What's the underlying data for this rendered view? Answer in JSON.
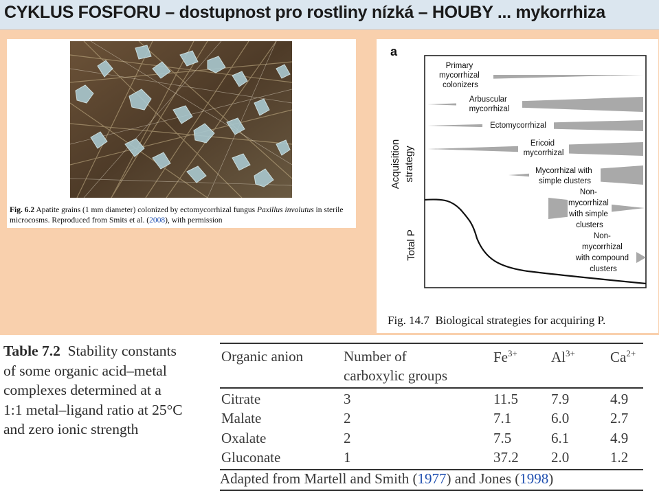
{
  "header": {
    "title": "CYKLUS FOSFORU – dostupnost pro rostliny nízká – HOUBY ... mykorrhiza"
  },
  "fig_6_2": {
    "label": "Fig. 6.2",
    "caption_before_species": "Apatite grains (1 mm diameter) colonized by ectomycorrhizal fungus",
    "species": "Paxillus involutus",
    "caption_after_species": "in sterile microcosms. Reproduced from Smits et al. (",
    "citation_year": "2008",
    "caption_end": "), with permission"
  },
  "fig_14_7": {
    "panel_letter": "a",
    "y_axis_top": "Acquisition strategy",
    "y_axis_top_line1": "Acquisition",
    "y_axis_top_line2": "strategy",
    "y_axis_bottom": "Total P",
    "strategies": [
      "Primary mycorrhizal colonizers",
      "Arbuscular mycorrhizal",
      "Ectomycorrhizal",
      "Ericoid mycorrhizal",
      "Mycorrhizal with simple clusters",
      "Non-mycorrhizal with simple clusters",
      "Non-mycorrhizal with compound clusters"
    ],
    "strategy_lines": [
      [
        "Primary",
        "mycorrhizal",
        "colonizers"
      ],
      [
        "Arbuscular",
        "mycorrhizal"
      ],
      [
        "Ectomycorrhizal"
      ],
      [
        "Ericoid",
        "mycorrhizal"
      ],
      [
        "Mycorrhizal with",
        "simple clusters"
      ],
      [
        "Non-",
        "mycorrhizal",
        "with simple",
        "clusters"
      ],
      [
        "Non-",
        "mycorrhizal",
        "with compound",
        "clusters"
      ]
    ],
    "caption_label": "Fig. 14.7",
    "caption_text": "Biological strategies for acquiring P."
  },
  "table_7_2": {
    "label": "Table 7.2",
    "caption": "Stability constants of some organic acid–metal complexes determined at a 1:1 metal–ligand ratio at 25°C and zero ionic strength",
    "caption_lines": [
      "Stability constants",
      "of some organic acid–metal",
      "complexes determined at a",
      "1:1 metal–ligand ratio at 25°C",
      "and zero ionic strength"
    ],
    "headers": {
      "anion": "Organic anion",
      "groups_line1": "Number of",
      "groups_line2": "carboxylic groups",
      "fe": "Fe",
      "fe_charge": "3+",
      "al": "Al",
      "al_charge": "3+",
      "ca": "Ca",
      "ca_charge": "2+"
    },
    "rows": [
      [
        "Citrate",
        "3",
        "11.5",
        "7.9",
        "4.9"
      ],
      [
        "Malate",
        "2",
        "7.1",
        "6.0",
        "2.7"
      ],
      [
        "Oxalate",
        "2",
        "7.5",
        "6.1",
        "4.9"
      ],
      [
        "Gluconate",
        "1",
        "37.2",
        "2.0",
        "1.2"
      ]
    ],
    "footer_before": "Adapted from Martell and Smith (",
    "footer_year1": "1977",
    "footer_middle": ") and Jones (",
    "footer_year2": "1998",
    "footer_end": ")"
  },
  "colors": {
    "header_bg": "#dbe6ef",
    "panel_bg": "#f9d0ad",
    "link": "#1f4fb0"
  }
}
